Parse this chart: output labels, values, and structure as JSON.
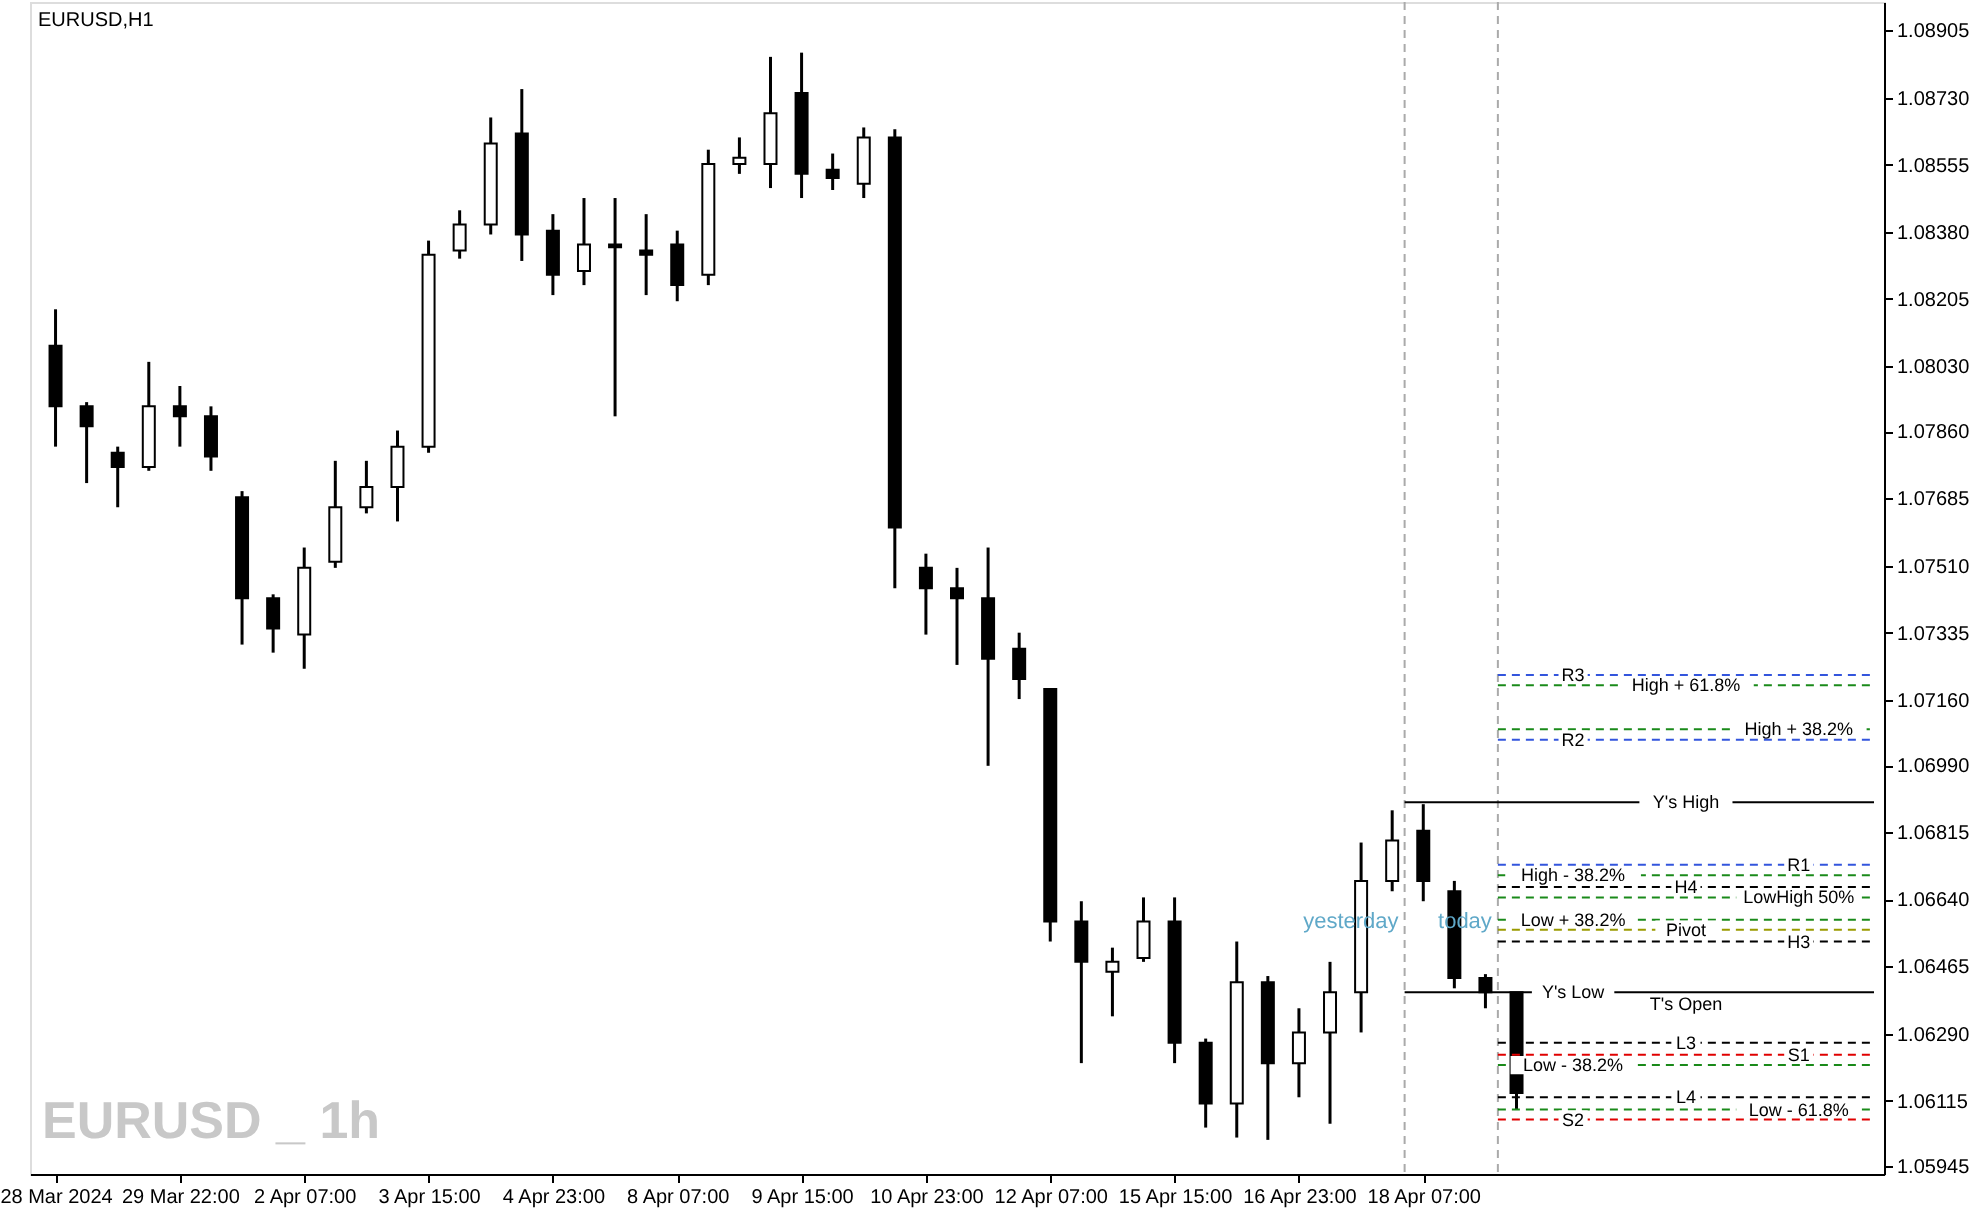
{
  "chart_data": {
    "type": "candlestick",
    "title": "EURUSD,H1",
    "categories": [
      "28 Mar 2024",
      null,
      null,
      null,
      "29 Mar 22:00",
      null,
      null,
      null,
      "2 Apr 07:00",
      null,
      null,
      null,
      "3 Apr 15:00",
      null,
      null,
      null,
      "4 Apr 23:00",
      null,
      null,
      null,
      "8 Apr 07:00",
      null,
      null,
      null,
      "9 Apr 15:00",
      null,
      null,
      null,
      "10 Apr 23:00",
      null,
      null,
      null,
      "12 Apr 07:00",
      null,
      null,
      null,
      "15 Apr 15:00",
      null,
      null,
      null,
      "16 Apr 23:00",
      null,
      null,
      null,
      "18 Apr 07:00",
      null,
      null,
      null,
      null,
      null,
      null,
      null,
      null,
      null,
      null,
      null,
      null,
      null,
      null
    ],
    "ohlc": [
      [
        1.08083,
        1.08178,
        1.0782,
        1.07925
      ],
      [
        1.07925,
        1.07936,
        1.07725,
        1.07873
      ],
      [
        1.07804,
        1.0782,
        1.07662,
        1.07767
      ],
      [
        1.07767,
        1.08041,
        1.07757,
        1.07925
      ],
      [
        1.07925,
        1.07978,
        1.0782,
        1.07899
      ],
      [
        1.07899,
        1.07925,
        1.07757,
        1.07794
      ],
      [
        1.07688,
        1.07704,
        1.07304,
        1.07425
      ],
      [
        1.07425,
        1.07435,
        1.07283,
        1.07346
      ],
      [
        1.0733,
        1.07557,
        1.07241,
        1.07504
      ],
      [
        1.0752,
        1.07783,
        1.07504,
        1.07662
      ],
      [
        1.07662,
        1.07783,
        1.07646,
        1.07715
      ],
      [
        1.07715,
        1.07862,
        1.07625,
        1.0782
      ],
      [
        1.0782,
        1.08357,
        1.07804,
        1.0832
      ],
      [
        1.08331,
        1.08436,
        1.0831,
        1.08399
      ],
      [
        1.08399,
        1.08678,
        1.08373,
        1.0861
      ],
      [
        1.08636,
        1.08752,
        1.08304,
        1.08373
      ],
      [
        1.08383,
        1.08426,
        1.08215,
        1.08268
      ],
      [
        1.08278,
        1.08468,
        1.08241,
        1.08347
      ],
      [
        1.08347,
        1.08468,
        1.07899,
        1.0834
      ],
      [
        1.08331,
        1.08426,
        1.08215,
        1.0832
      ],
      [
        1.08347,
        1.08383,
        1.08199,
        1.08241
      ],
      [
        1.08268,
        1.08594,
        1.08241,
        1.08557
      ],
      [
        1.08557,
        1.08626,
        1.08531,
        1.08573
      ],
      [
        1.08557,
        1.08836,
        1.08494,
        1.08689
      ],
      [
        1.08742,
        1.08847,
        1.08468,
        1.08531
      ],
      [
        1.08542,
        1.08584,
        1.08489,
        1.0852
      ],
      [
        1.08505,
        1.08652,
        1.08468,
        1.08626
      ],
      [
        1.08626,
        1.08647,
        1.07451,
        1.07609
      ],
      [
        1.07504,
        1.07541,
        1.0733,
        1.07451
      ],
      [
        1.07451,
        1.07504,
        1.07251,
        1.07425
      ],
      [
        1.07425,
        1.07557,
        1.06988,
        1.07267
      ],
      [
        1.07293,
        1.07335,
        1.07162,
        1.07214
      ],
      [
        1.07188,
        1.07188,
        1.0653,
        1.06582
      ],
      [
        1.06582,
        1.06635,
        1.06213,
        1.06477
      ],
      [
        1.06451,
        1.06514,
        1.06335,
        1.06477
      ],
      [
        1.06487,
        1.06645,
        1.06477,
        1.06582
      ],
      [
        1.06582,
        1.06645,
        1.06213,
        1.06266
      ],
      [
        1.06266,
        1.06277,
        1.06045,
        1.06108
      ],
      [
        1.06108,
        1.0653,
        1.06019,
        1.06424
      ],
      [
        1.06424,
        1.0644,
        1.06013,
        1.06213
      ],
      [
        1.06213,
        1.06356,
        1.06124,
        1.06293
      ],
      [
        1.06293,
        1.06477,
        1.06055,
        1.06398
      ],
      [
        1.06398,
        1.06788,
        1.06293,
        1.06688
      ],
      [
        1.06688,
        1.06872,
        1.06661,
        1.06793
      ],
      [
        1.06819,
        1.06888,
        1.06635,
        1.06688
      ],
      [
        1.06661,
        1.06688,
        1.06408,
        1.06435
      ],
      [
        1.06435,
        1.06445,
        1.06356,
        1.06398
      ],
      [
        1.06398,
        1.06398,
        1.06092,
        1.06135
      ],
      null,
      null,
      null,
      null,
      null,
      null,
      null,
      null,
      null,
      null,
      null
    ],
    "color": "#000000",
    "ylim": [
      1.05924,
      1.08979
    ],
    "yticks": [
      {
        "value": 1.08905,
        "label": "1.08905"
      },
      {
        "value": 1.0873,
        "label": "1.08730"
      },
      {
        "value": 1.08555,
        "label": "1.08555"
      },
      {
        "value": 1.0838,
        "label": "1.08380"
      },
      {
        "value": 1.08205,
        "label": "1.08205"
      },
      {
        "value": 1.0803,
        "label": "1.08030"
      },
      {
        "value": 1.0786,
        "label": "1.07860"
      },
      {
        "value": 1.07685,
        "label": "1.07685"
      },
      {
        "value": 1.0751,
        "label": "1.07510"
      },
      {
        "value": 1.07335,
        "label": "1.07335"
      },
      {
        "value": 1.0716,
        "label": "1.07160"
      },
      {
        "value": 1.0699,
        "label": "1.06990"
      },
      {
        "value": 1.06815,
        "label": "1.06815"
      },
      {
        "value": 1.0664,
        "label": "1.06640"
      },
      {
        "value": 1.06465,
        "label": "1.06465"
      },
      {
        "value": 1.0629,
        "label": "1.06290"
      },
      {
        "value": 1.06115,
        "label": "1.06115"
      },
      {
        "value": 1.05945,
        "label": "1.05945"
      }
    ],
    "grid": false,
    "ref_lines": [
      {
        "axis": "y",
        "value": 1.07225,
        "label": "R3",
        "color": "#3355dd",
        "line_style": "dashed"
      },
      {
        "axis": "y",
        "value": 1.07198,
        "label": "High + 61.8%",
        "color": "#1a8a1a",
        "line_style": "dashed"
      },
      {
        "axis": "y",
        "value": 1.07083,
        "label": "High + 38.2%",
        "color": "#1a8a1a",
        "line_style": "dashed"
      },
      {
        "axis": "y",
        "value": 1.07056,
        "label": "R2",
        "color": "#3355dd",
        "line_style": "dashed"
      },
      {
        "axis": "y",
        "value": 1.06893,
        "label": "Y's High",
        "color": "#000000",
        "line_style": "solid"
      },
      {
        "axis": "y",
        "value": 1.0673,
        "label": "R1",
        "color": "#3355dd",
        "line_style": "dashed"
      },
      {
        "axis": "y",
        "value": 1.06703,
        "label": "High - 38.2%",
        "color": "#1a8a1a",
        "line_style": "dashed"
      },
      {
        "axis": "y",
        "value": 1.06672,
        "label": "H4",
        "color": "#000000",
        "line_style": "dashed"
      },
      {
        "axis": "y",
        "value": 1.06645,
        "label": "LowHigh 50%",
        "color": "#1a8a1a",
        "line_style": "dashed"
      },
      {
        "axis": "y",
        "value": 1.06587,
        "label": "Low + 38.2%",
        "color": "#1a8a1a",
        "line_style": "dashed"
      },
      {
        "axis": "y",
        "value": 1.06561,
        "label": "Pivot",
        "color": "#9a9a00",
        "line_style": "dashed"
      },
      {
        "axis": "y",
        "value": 1.0653,
        "label": "H3",
        "color": "#000000",
        "line_style": "dashed"
      },
      {
        "axis": "y",
        "value": 1.06398,
        "label": "Y's Low",
        "color": "#000000",
        "line_style": "solid"
      },
      {
        "axis": "y",
        "value": 1.06266,
        "label": "L3",
        "color": "#000000",
        "line_style": "dashed"
      },
      {
        "axis": "y",
        "value": 1.06235,
        "label": "S1",
        "color": "#e00000",
        "line_style": "dashed"
      },
      {
        "axis": "y",
        "value": 1.06208,
        "label": "Low - 38.2%",
        "color": "#1a8a1a",
        "line_style": "dashed"
      },
      {
        "axis": "y",
        "value": 1.06124,
        "label": "L4",
        "color": "#000000",
        "line_style": "dashed"
      },
      {
        "axis": "y",
        "value": 1.06092,
        "label": "Low - 61.8%",
        "color": "#1a8a1a",
        "line_style": "dashed"
      },
      {
        "axis": "y",
        "value": 1.06066,
        "label": "S2",
        "color": "#e00000",
        "line_style": "dashed"
      }
    ],
    "annotations": [
      "yesterday",
      "today",
      {
        "text": "T's Open",
        "y": 1.06398
      },
      "EURUSD _ 1h"
    ]
  }
}
